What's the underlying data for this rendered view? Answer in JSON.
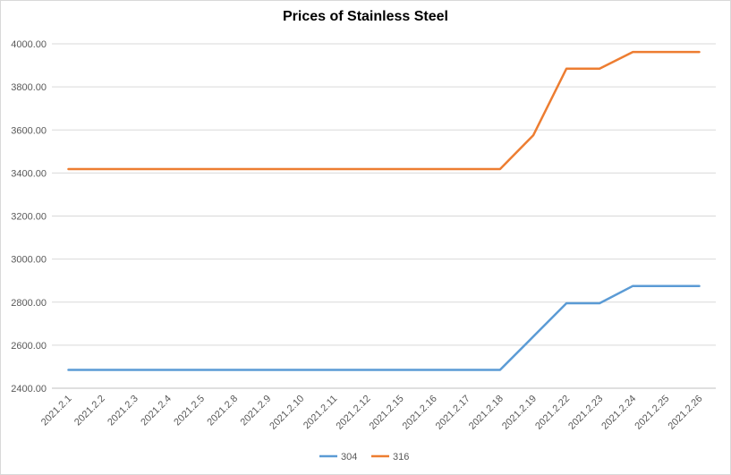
{
  "chart_data": {
    "type": "line",
    "title": "Prices of Stainless Steel",
    "xlabel": "",
    "ylabel": "",
    "categories": [
      "2021.2.1",
      "2021.2.2",
      "2021.2.3",
      "2021.2.4",
      "2021.2.5",
      "2021.2.8",
      "2021.2.9",
      "2021.2.10",
      "2021.2.11",
      "2021.2.12",
      "2021.2.15",
      "2021.2.16",
      "2021.2.17",
      "2021.2.18",
      "2021.2.19",
      "2021.2.22",
      "2021.2.23",
      "2021.2.24",
      "2021.2.25",
      "2021.2.26"
    ],
    "ylim": [
      2400,
      4000
    ],
    "yticks": [
      "2400.00",
      "2600.00",
      "2800.00",
      "3000.00",
      "3200.00",
      "3400.00",
      "3600.00",
      "3800.00",
      "4000.00"
    ],
    "grid": true,
    "legend": "bottom",
    "series": [
      {
        "name": "304",
        "color": "#5B9BD5",
        "values": [
          2485,
          2485,
          2485,
          2485,
          2485,
          2485,
          2485,
          2485,
          2485,
          2485,
          2485,
          2485,
          2485,
          2485,
          2640,
          2795,
          2795,
          2875,
          2875,
          2875
        ]
      },
      {
        "name": "316",
        "color": "#ED7D31",
        "values": [
          3418,
          3418,
          3418,
          3418,
          3418,
          3418,
          3418,
          3418,
          3418,
          3418,
          3418,
          3418,
          3418,
          3418,
          3575,
          3885,
          3885,
          3962,
          3962,
          3962
        ]
      }
    ]
  }
}
